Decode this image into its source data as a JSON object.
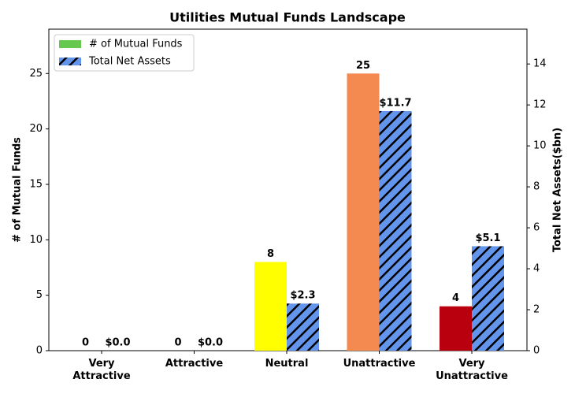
{
  "chart_data": {
    "type": "bar",
    "title": "Utilities Mutual Funds Landscape",
    "categories": [
      "Very\nAttractive",
      "Attractive",
      "Neutral",
      "Unattractive",
      "Very\nUnattractive"
    ],
    "series": [
      {
        "name": "# of Mutual Funds",
        "color": "#66c84f",
        "colors": [
          "#66c84f",
          "#66c84f",
          "#ffff00",
          "#f58a50",
          "#b8000e"
        ],
        "values": [
          0,
          0,
          8,
          25,
          4
        ]
      },
      {
        "name": "Total Net Assets",
        "color": "#6495ed",
        "hatch": true,
        "axis": "y2",
        "values": [
          0.0,
          0.0,
          2.3,
          11.7,
          5.1
        ],
        "value_labels": [
          "$0.0",
          "$0.0",
          "$2.3",
          "$11.7",
          "$5.1"
        ]
      }
    ],
    "ylabel": "# of Mutual Funds",
    "y2label": "Total Net Assets($bn)",
    "ylim": [
      0,
      29
    ],
    "yticks": [
      0,
      5,
      10,
      15,
      20,
      25
    ],
    "y2lim": [
      0,
      15.7
    ],
    "y2ticks": [
      0,
      2,
      4,
      6,
      8,
      10,
      12,
      14
    ],
    "legend": "upper left",
    "grid": false
  }
}
